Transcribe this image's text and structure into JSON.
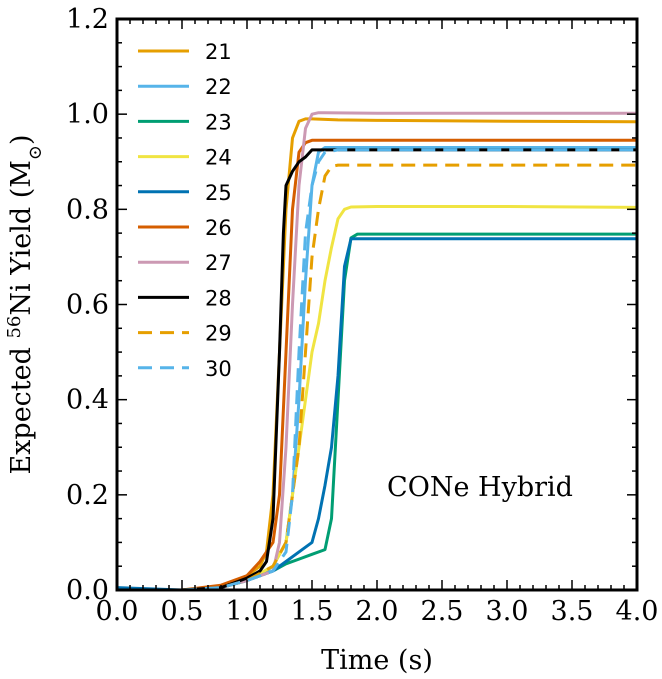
{
  "chart_data": {
    "type": "line",
    "xlabel": "Time (s)",
    "ylabel_prefix": "Expected ",
    "ylabel_sup": "56",
    "ylabel_mid": "Ni Yield (M",
    "ylabel_sub": "⊙",
    "ylabel_suffix": ")",
    "xlim": [
      0,
      4
    ],
    "ylim": [
      0,
      1.2
    ],
    "xticks": [
      0.0,
      0.5,
      1.0,
      1.5,
      2.0,
      2.5,
      3.0,
      3.5,
      4.0
    ],
    "yticks": [
      0.0,
      0.2,
      0.4,
      0.6,
      0.8,
      1.0,
      1.2
    ],
    "xtick_labels": [
      "0.0",
      "0.5",
      "1.0",
      "1.5",
      "2.0",
      "2.5",
      "3.0",
      "3.5",
      "4.0"
    ],
    "ytick_labels": [
      "0.0",
      "0.2",
      "0.4",
      "0.6",
      "0.8",
      "1.0",
      "1.2"
    ],
    "grid": false,
    "legend_position": "top-left",
    "annotation": "CONe Hybrid",
    "series": [
      {
        "name": "21",
        "color": "#E69F00",
        "dash": false,
        "x": [
          0,
          0.5,
          0.8,
          1.0,
          1.1,
          1.15,
          1.2,
          1.25,
          1.3,
          1.35,
          1.4,
          1.45,
          1.5,
          1.7,
          2.0,
          3.0,
          4.0
        ],
        "y": [
          0,
          0,
          0.005,
          0.03,
          0.05,
          0.08,
          0.2,
          0.5,
          0.8,
          0.95,
          0.985,
          0.99,
          0.99,
          0.988,
          0.987,
          0.985,
          0.984
        ]
      },
      {
        "name": "22",
        "color": "#56B4E9",
        "dash": false,
        "x": [
          0,
          0.5,
          0.8,
          1.0,
          1.1,
          1.2,
          1.3,
          1.35,
          1.4,
          1.45,
          1.5,
          1.55,
          1.6,
          1.65,
          1.7,
          2.0,
          3.0,
          4.0
        ],
        "y": [
          0,
          0,
          0.005,
          0.02,
          0.03,
          0.05,
          0.1,
          0.2,
          0.4,
          0.65,
          0.85,
          0.92,
          0.93,
          0.93,
          0.93,
          0.93,
          0.93,
          0.93
        ]
      },
      {
        "name": "23",
        "color": "#009E73",
        "dash": false,
        "x": [
          0,
          0.5,
          0.8,
          1.0,
          1.2,
          1.3,
          1.4,
          1.5,
          1.6,
          1.65,
          1.7,
          1.75,
          1.8,
          1.85,
          2.0,
          3.0,
          4.0
        ],
        "y": [
          0,
          0,
          0.005,
          0.02,
          0.04,
          0.055,
          0.065,
          0.075,
          0.085,
          0.15,
          0.4,
          0.65,
          0.74,
          0.748,
          0.748,
          0.748,
          0.748
        ]
      },
      {
        "name": "24",
        "color": "#F0E442",
        "dash": false,
        "x": [
          0,
          0.5,
          0.8,
          1.0,
          1.2,
          1.3,
          1.35,
          1.4,
          1.5,
          1.55,
          1.6,
          1.65,
          1.7,
          1.75,
          1.8,
          2.0,
          3.0,
          4.0
        ],
        "y": [
          0,
          0,
          0.005,
          0.02,
          0.05,
          0.1,
          0.2,
          0.3,
          0.5,
          0.56,
          0.65,
          0.72,
          0.78,
          0.8,
          0.805,
          0.806,
          0.806,
          0.804
        ]
      },
      {
        "name": "25",
        "color": "#0072B2",
        "dash": false,
        "x": [
          0,
          0.5,
          0.8,
          1.0,
          1.2,
          1.3,
          1.4,
          1.5,
          1.55,
          1.6,
          1.65,
          1.7,
          1.75,
          1.8,
          2.0,
          3.0,
          4.0
        ],
        "y": [
          0.005,
          0,
          0.005,
          0.02,
          0.04,
          0.06,
          0.08,
          0.1,
          0.15,
          0.22,
          0.3,
          0.45,
          0.68,
          0.738,
          0.738,
          0.738,
          0.738
        ]
      },
      {
        "name": "26",
        "color": "#D55E00",
        "dash": false,
        "x": [
          0,
          0.5,
          0.8,
          1.0,
          1.1,
          1.2,
          1.25,
          1.3,
          1.35,
          1.4,
          1.45,
          1.5,
          1.6,
          2.0,
          3.0,
          4.0
        ],
        "y": [
          0,
          0,
          0.01,
          0.03,
          0.06,
          0.1,
          0.2,
          0.5,
          0.8,
          0.92,
          0.94,
          0.945,
          0.945,
          0.945,
          0.945,
          0.945
        ]
      },
      {
        "name": "27",
        "color": "#CC99B3",
        "dash": false,
        "x": [
          0,
          0.5,
          0.8,
          1.0,
          1.2,
          1.25,
          1.3,
          1.35,
          1.4,
          1.45,
          1.5,
          1.55,
          1.6,
          2.0,
          3.0,
          4.0
        ],
        "y": [
          0,
          0,
          0.005,
          0.02,
          0.04,
          0.1,
          0.3,
          0.6,
          0.85,
          0.97,
          1.0,
          1.003,
          1.003,
          1.002,
          1.002,
          1.002
        ]
      },
      {
        "name": "28",
        "color": "#000000",
        "dash": false,
        "x": [
          0,
          0.5,
          0.8,
          1.0,
          1.1,
          1.15,
          1.2,
          1.25,
          1.28,
          1.3,
          1.35,
          1.4,
          1.45,
          1.5,
          1.6,
          2.0,
          3.0,
          4.0
        ],
        "y": [
          0,
          0,
          0.005,
          0.025,
          0.04,
          0.06,
          0.15,
          0.5,
          0.75,
          0.85,
          0.88,
          0.9,
          0.91,
          0.925,
          0.925,
          0.925,
          0.925,
          0.925
        ]
      },
      {
        "name": "29",
        "color": "#E69F00",
        "dash": true,
        "x": [
          0,
          0.5,
          0.8,
          1.0,
          1.2,
          1.3,
          1.4,
          1.45,
          1.5,
          1.55,
          1.6,
          1.65,
          1.7,
          2.0,
          3.0,
          4.0
        ],
        "y": [
          0,
          0,
          0.005,
          0.02,
          0.05,
          0.1,
          0.3,
          0.5,
          0.7,
          0.8,
          0.87,
          0.89,
          0.893,
          0.893,
          0.893,
          0.893
        ]
      },
      {
        "name": "30",
        "color": "#56B4E9",
        "dash": true,
        "x": [
          0,
          0.5,
          0.8,
          1.0,
          1.2,
          1.3,
          1.35,
          1.4,
          1.45,
          1.5,
          1.55,
          1.6,
          1.7,
          2.0,
          3.0,
          4.0
        ],
        "y": [
          0,
          0,
          0.005,
          0.02,
          0.04,
          0.08,
          0.2,
          0.5,
          0.75,
          0.85,
          0.9,
          0.92,
          0.925,
          0.925,
          0.925,
          0.925
        ]
      }
    ]
  }
}
